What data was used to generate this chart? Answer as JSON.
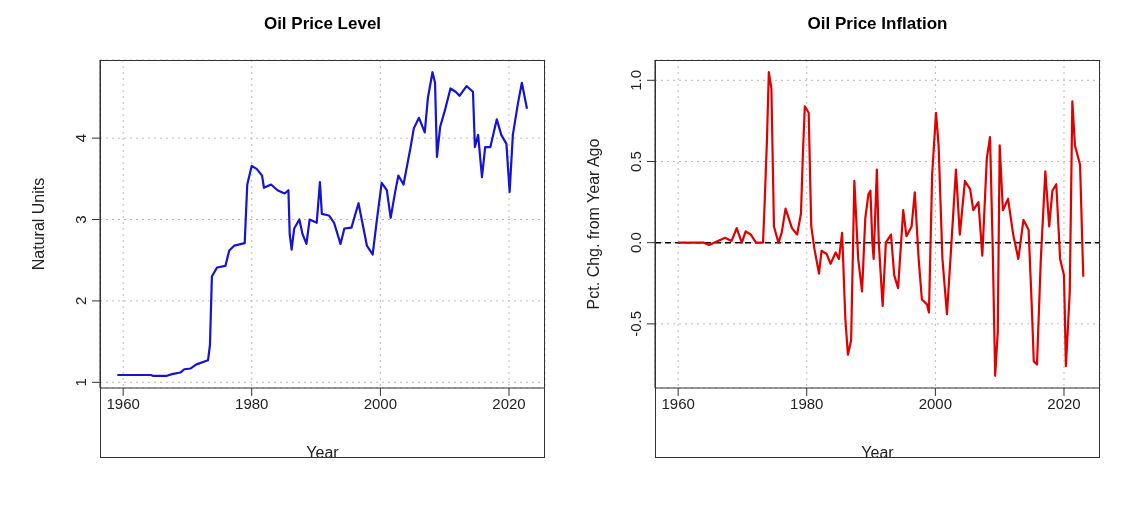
{
  "chart_data": [
    {
      "type": "line",
      "title": "Oil Price Level",
      "xlabel": "Year",
      "ylabel": "Natural Units",
      "xlim": [
        1956.4,
        2025.6
      ],
      "xticks": [
        1960,
        1980,
        2000,
        2020
      ],
      "ylim": [
        0.93,
        4.96
      ],
      "yticks": [
        1,
        2,
        3,
        4
      ],
      "grid": true,
      "line_style": "solid",
      "marker": "none",
      "series": [
        {
          "color": "#1414d2",
          "x": [
            1959.1,
            1964.3,
            1964.6,
            1966.8,
            1967.6,
            1968.9,
            1969.5,
            1970.5,
            1971.4,
            1973.2,
            1973.5,
            1973.8,
            1974.6,
            1975.9,
            1976.5,
            1977.3,
            1978.9,
            1979.3,
            1980.0,
            1980.8,
            1981.6,
            1981.9,
            1983.0,
            1984.0,
            1985.1,
            1985.7,
            1985.9,
            1986.2,
            1986.6,
            1987.4,
            1987.9,
            1988.5,
            1989.0,
            1990.1,
            1990.6,
            1990.9,
            1992.0,
            1992.8,
            1993.8,
            1994.4,
            1995.5,
            1996.6,
            1997.1,
            1997.9,
            1998.8,
            1999.4,
            2000.2,
            2001.0,
            2001.6,
            2002.3,
            2002.8,
            2003.6,
            2004.7,
            2005.2,
            2006.0,
            2006.9,
            2007.4,
            2008.1,
            2008.5,
            2008.8,
            2009.3,
            2010.1,
            2010.9,
            2011.7,
            2012.3,
            2013.4,
            2014.4,
            2014.7,
            2015.2,
            2015.8,
            2016.3,
            2017.1,
            2018.1,
            2018.8,
            2019.6,
            2020.1,
            2020.6,
            2021.4,
            2022.0,
            2022.8
          ],
          "values": [
            1.09,
            1.09,
            1.08,
            1.08,
            1.1,
            1.12,
            1.16,
            1.17,
            1.22,
            1.27,
            1.46,
            2.3,
            2.41,
            2.43,
            2.62,
            2.68,
            2.71,
            3.43,
            3.66,
            3.62,
            3.54,
            3.39,
            3.43,
            3.36,
            3.32,
            3.36,
            2.82,
            2.63,
            2.89,
            3.0,
            2.82,
            2.7,
            3.0,
            2.96,
            3.46,
            3.07,
            3.05,
            2.96,
            2.7,
            2.89,
            2.9,
            3.2,
            3.0,
            2.68,
            2.57,
            2.96,
            3.45,
            3.36,
            3.02,
            3.34,
            3.54,
            3.43,
            3.89,
            4.12,
            4.25,
            4.07,
            4.5,
            4.81,
            4.68,
            3.77,
            4.14,
            4.36,
            4.61,
            4.57,
            4.52,
            4.64,
            4.57,
            3.89,
            4.04,
            3.52,
            3.89,
            3.89,
            4.23,
            4.04,
            3.93,
            3.34,
            4.04,
            4.43,
            4.68,
            4.36
          ]
        }
      ]
    },
    {
      "type": "line",
      "title": "Oil Price Inflation",
      "xlabel": "Year",
      "ylabel": "Pct. Chg. from Year Ago",
      "xlim": [
        1956.4,
        2025.6
      ],
      "xticks": [
        1960,
        1980,
        2000,
        2020
      ],
      "ylim": [
        -0.895,
        1.125
      ],
      "yticks": [
        {
          "value": -0.5,
          "label": "-0.5"
        },
        {
          "value": 0,
          "label": "0.0"
        },
        {
          "value": 0.5,
          "label": "0.5"
        },
        {
          "value": 1,
          "label": "1.0"
        }
      ],
      "grid": true,
      "line_style": "solid",
      "marker": "none",
      "ref_lines": [
        {
          "axis": "y",
          "value": 0,
          "color": "#000000",
          "line_style": "dashed"
        }
      ],
      "series": [
        {
          "color": "#e00000",
          "x": [
            1960,
            1964,
            1964.8,
            1965.6,
            1967.3,
            1968.3,
            1969.1,
            1969.9,
            1970.5,
            1971.3,
            1972.1,
            1973.2,
            1973.4,
            1973.8,
            1974.1,
            1974.5,
            1974.9,
            1975.6,
            1976.1,
            1976.7,
            1977.2,
            1977.7,
            1978.5,
            1979.1,
            1979.4,
            1979.7,
            1980.3,
            1980.7,
            1981.2,
            1981.9,
            1982.3,
            1983.1,
            1983.7,
            1984.5,
            1985.0,
            1985.5,
            1986.0,
            1986.4,
            1986.9,
            1987.4,
            1988.0,
            1988.6,
            1989.1,
            1989.6,
            1989.9,
            1990.2,
            1990.4,
            1990.9,
            1991.2,
            1991.8,
            1992.3,
            1993.1,
            1993.6,
            1994.2,
            1995.0,
            1995.5,
            1996.3,
            1996.8,
            1997.4,
            1997.9,
            1998.7,
            1999.0,
            1999.5,
            2000.1,
            2000.5,
            2001.1,
            2001.8,
            2002.5,
            2003.2,
            2003.8,
            2004.6,
            2005.4,
            2005.9,
            2006.7,
            2007.3,
            2008.0,
            2008.5,
            2008.9,
            2009.3,
            2009.7,
            2010.0,
            2010.5,
            2011.3,
            2012.1,
            2012.9,
            2013.7,
            2014.5,
            2015.0,
            2015.3,
            2015.8,
            2016.4,
            2017.1,
            2017.7,
            2018.2,
            2018.8,
            2019.4,
            2020.0,
            2020.3,
            2020.9,
            2021.3,
            2021.7,
            2022.5,
            2023.0
          ],
          "values": [
            0,
            0,
            -0.015,
            0,
            0.03,
            0.01,
            0.09,
            0,
            0.07,
            0.05,
            0,
            0,
            0.19,
            0.62,
            1.05,
            0.95,
            0.1,
            0,
            0.06,
            0.21,
            0.15,
            0.09,
            0.05,
            0.18,
            0.55,
            0.84,
            0.8,
            0.1,
            -0.04,
            -0.19,
            -0.05,
            -0.07,
            -0.13,
            -0.06,
            -0.1,
            0.06,
            -0.47,
            -0.69,
            -0.6,
            0.38,
            -0.1,
            -0.3,
            0.15,
            0.3,
            0.32,
            0,
            -0.1,
            0.45,
            0,
            -0.39,
            0,
            0.05,
            -0.2,
            -0.28,
            0.2,
            0.04,
            0.1,
            0.31,
            -0.1,
            -0.35,
            -0.38,
            -0.43,
            0.42,
            0.8,
            0.6,
            -0.1,
            -0.44,
            0,
            0.45,
            0.05,
            0.38,
            0.33,
            0.2,
            0.25,
            -0.08,
            0.52,
            0.65,
            0,
            -0.82,
            -0.55,
            0.6,
            0.2,
            0.27,
            0.05,
            -0.1,
            0.14,
            0.08,
            -0.4,
            -0.73,
            -0.75,
            -0.1,
            0.44,
            0.1,
            0.32,
            0.36,
            -0.1,
            -0.2,
            -0.76,
            -0.3,
            0.87,
            0.6,
            0.48,
            -0.21
          ]
        }
      ]
    }
  ]
}
